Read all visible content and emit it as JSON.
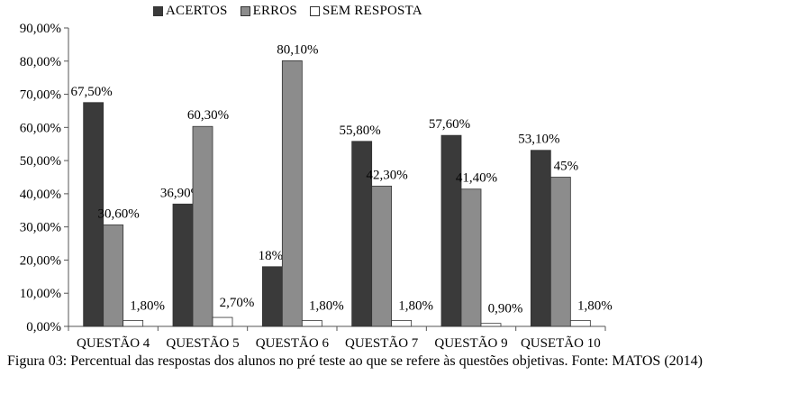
{
  "chart_data": {
    "type": "bar",
    "categories": [
      "QUESTÃO 4",
      "QUESTÃO 5",
      "QUESTÃO 6",
      "QUESTÃO 7",
      "QUESTÃO 9",
      "QUSETÃO 10"
    ],
    "series": [
      {
        "name": "ACERTOS",
        "color": "#3a3a3a",
        "values": [
          67.5,
          36.9,
          18.0,
          55.8,
          57.6,
          53.1
        ],
        "labels": [
          "67,50%",
          "36,90%",
          "18%",
          "55,80%",
          "57,60%",
          "53,10%"
        ]
      },
      {
        "name": "ERROS",
        "color": "#8c8c8c",
        "values": [
          30.6,
          60.3,
          80.1,
          42.3,
          41.4,
          45.0
        ],
        "labels": [
          "30,60%",
          "60,30%",
          "80,10%",
          "42,30%",
          "41,40%",
          "45%"
        ]
      },
      {
        "name": "SEM RESPOSTA",
        "color": "#ffffff",
        "values": [
          1.8,
          2.7,
          1.8,
          1.8,
          0.9,
          1.8
        ],
        "labels": [
          "1,80%",
          "2,70%",
          "1,80%",
          "1,80%",
          "0,90%",
          "1,80%"
        ]
      }
    ],
    "ylim": [
      0,
      90
    ],
    "yticks": [
      "0,00%",
      "10,00%",
      "20,00%",
      "30,00%",
      "40,00%",
      "50,00%",
      "60,00%",
      "70,00%",
      "80,00%",
      "90,00%"
    ],
    "legend_position": "top",
    "grid": false
  },
  "caption": "Figura 03: Percentual das respostas dos alunos no pré teste ao que se refere às questões objetivas. Fonte: MATOS (2014)"
}
